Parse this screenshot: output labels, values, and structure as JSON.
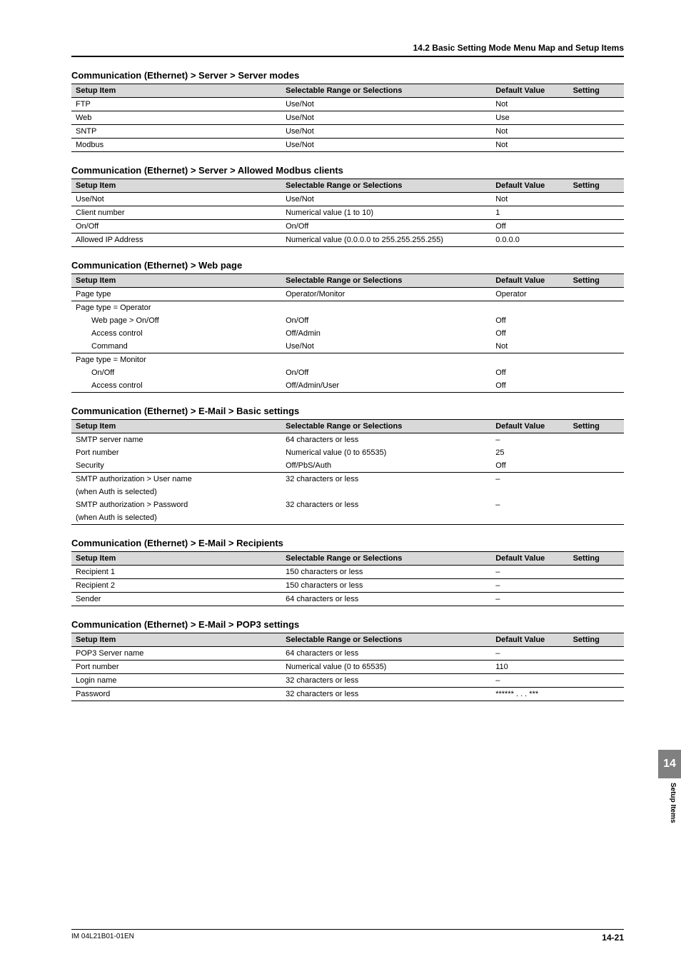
{
  "section_header": "14.2  Basic Setting Mode Menu Map and Setup Items",
  "columns": {
    "item": "Setup Item",
    "range": "Selectable Range or Selections",
    "def": "Default Value",
    "set": "Setting"
  },
  "tables": {
    "server_modes": {
      "title": "Communication (Ethernet) > Server > Server modes",
      "rows": [
        {
          "item": "FTP",
          "range": "Use/Not",
          "def": "Not"
        },
        {
          "item": "Web",
          "range": "Use/Not",
          "def": "Use"
        },
        {
          "item": "SNTP",
          "range": "Use/Not",
          "def": "Not"
        },
        {
          "item": "Modbus",
          "range": "Use/Not",
          "def": "Not"
        }
      ]
    },
    "modbus_clients": {
      "title": "Communication (Ethernet) > Server > Allowed Modbus clients",
      "rows": [
        {
          "item": "Use/Not",
          "range": "Use/Not",
          "def": "Not"
        },
        {
          "item": "Client number",
          "range": "Numerical value (1 to 10)",
          "def": "1"
        },
        {
          "item": "On/Off",
          "range": "On/Off",
          "def": "Off"
        },
        {
          "item": "Allowed IP Address",
          "range": "Numerical value (0.0.0.0 to 255.255.255.255)",
          "def": "0.0.0.0"
        }
      ]
    },
    "web_page": {
      "title": "Communication (Ethernet) > Web page",
      "rows": [
        {
          "item": "Page type",
          "range": "Operator/Monitor",
          "def": "Operator",
          "border": true
        },
        {
          "item": "Page type = Operator",
          "range": "",
          "def": "",
          "border": false
        },
        {
          "item": "Web page > On/Off",
          "range": "On/Off",
          "def": "Off",
          "border": false,
          "indent": true
        },
        {
          "item": "Access control",
          "range": "Off/Admin",
          "def": "Off",
          "border": false,
          "indent": true
        },
        {
          "item": "Command",
          "range": "Use/Not",
          "def": "Not",
          "border": true,
          "indent": true
        },
        {
          "item": "Page type = Monitor",
          "range": "",
          "def": "",
          "border": false
        },
        {
          "item": "On/Off",
          "range": "On/Off",
          "def": "Off",
          "border": false,
          "indent": true
        },
        {
          "item": "Access control",
          "range": "Off/Admin/User",
          "def": "Off",
          "border": true,
          "indent": true
        }
      ]
    },
    "email_basic": {
      "title": "Communication (Ethernet) > E-Mail > Basic settings",
      "rows": [
        {
          "item": "SMTP server name",
          "range": "64 characters or less",
          "def": "–",
          "border": false
        },
        {
          "item": "Port number",
          "range": "Numerical value (0 to 65535)",
          "def": "25",
          "border": false
        },
        {
          "item": "Security",
          "range": "Off/PbS/Auth",
          "def": "Off",
          "border": true
        },
        {
          "item": "SMTP authorization > User name",
          "range": "32 characters or less",
          "def": "–",
          "border": false
        },
        {
          "item": "(when Auth is selected)",
          "range": "",
          "def": "",
          "border": false
        },
        {
          "item": "SMTP authorization > Password",
          "range": "32 characters or less",
          "def": "–",
          "border": false
        },
        {
          "item": "(when Auth is selected)",
          "range": "",
          "def": "",
          "border": true
        }
      ]
    },
    "email_recipients": {
      "title": "Communication (Ethernet) > E-Mail > Recipients",
      "rows": [
        {
          "item": "Recipient 1",
          "range": "150 characters or less",
          "def": "–"
        },
        {
          "item": "Recipient 2",
          "range": "150 characters or less",
          "def": "–"
        },
        {
          "item": "Sender",
          "range": "64 characters or less",
          "def": "–"
        }
      ]
    },
    "email_pop3": {
      "title": "Communication (Ethernet) > E-Mail > POP3 settings",
      "rows": [
        {
          "item": "POP3 Server name",
          "range": "64 characters or less",
          "def": "–"
        },
        {
          "item": "Port number",
          "range": "Numerical value (0 to 65535)",
          "def": "110"
        },
        {
          "item": "Login name",
          "range": "32 characters or less",
          "def": "–"
        },
        {
          "item": "Password",
          "range": "32 characters or less",
          "def": "****** . . . ***"
        }
      ]
    }
  },
  "sidebar": {
    "chapter": "14",
    "label": "Setup Items"
  },
  "footer": {
    "doc_id": "IM 04L21B01-01EN",
    "page": "14-21"
  }
}
